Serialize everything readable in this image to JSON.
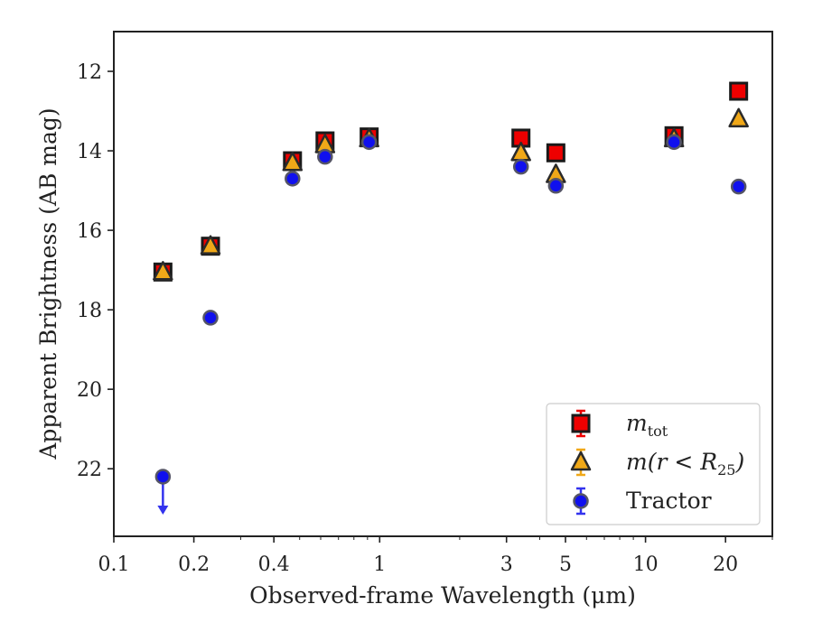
{
  "chart_data": {
    "type": "scatter",
    "xlabel": "Observed-frame Wavelength (μm)",
    "ylabel": "Apparent Brightness (AB mag)",
    "x_scale": "log",
    "xlim": [
      0.1,
      30
    ],
    "ylim": [
      23.7,
      11.0
    ],
    "y_inverted": true,
    "x_ticks": [
      {
        "value": 0.1,
        "label": "0.1"
      },
      {
        "value": 0.2,
        "label": "0.2"
      },
      {
        "value": 0.4,
        "label": "0.4"
      },
      {
        "value": 1,
        "label": "1"
      },
      {
        "value": 3,
        "label": "3"
      },
      {
        "value": 5,
        "label": "5"
      },
      {
        "value": 10,
        "label": "10"
      },
      {
        "value": 20,
        "label": "20"
      }
    ],
    "y_ticks": [
      {
        "value": 12,
        "label": "12"
      },
      {
        "value": 14,
        "label": "14"
      },
      {
        "value": 16,
        "label": "16"
      },
      {
        "value": 18,
        "label": "18"
      },
      {
        "value": 20,
        "label": "20"
      },
      {
        "value": 22,
        "label": "22"
      }
    ],
    "grid": false,
    "legend_position": "bottom-right",
    "series": [
      {
        "name": "m_tot",
        "legend_main": "m",
        "legend_sub": "tot",
        "marker": "square",
        "color": "#ee0000",
        "points": [
          {
            "x": 0.153,
            "y": 17.05
          },
          {
            "x": 0.231,
            "y": 16.4
          },
          {
            "x": 0.47,
            "y": 14.25
          },
          {
            "x": 0.623,
            "y": 13.75
          },
          {
            "x": 0.913,
            "y": 13.65
          },
          {
            "x": 3.4,
            "y": 13.68
          },
          {
            "x": 4.6,
            "y": 14.05
          },
          {
            "x": 12.8,
            "y": 13.62
          },
          {
            "x": 22.4,
            "y": 12.5
          }
        ]
      },
      {
        "name": "m(r < R25)",
        "legend_main": "m(r < R",
        "legend_sub": "25",
        "legend_close": ")",
        "marker": "triangle",
        "color": "#f0a818",
        "points": [
          {
            "x": 0.153,
            "y": 17.05
          },
          {
            "x": 0.231,
            "y": 16.4
          },
          {
            "x": 0.47,
            "y": 14.3
          },
          {
            "x": 0.623,
            "y": 13.85
          },
          {
            "x": 0.913,
            "y": 13.7
          },
          {
            "x": 3.4,
            "y": 14.05
          },
          {
            "x": 4.6,
            "y": 14.6
          },
          {
            "x": 12.8,
            "y": 13.7
          },
          {
            "x": 22.4,
            "y": 13.2
          }
        ]
      },
      {
        "name": "Tractor",
        "legend_main": "Tractor",
        "marker": "circle",
        "color": "#1010ee",
        "points": [
          {
            "x": 0.153,
            "y": 22.2,
            "upper_limit": true
          },
          {
            "x": 0.231,
            "y": 18.2
          },
          {
            "x": 0.47,
            "y": 14.7
          },
          {
            "x": 0.623,
            "y": 14.15
          },
          {
            "x": 0.913,
            "y": 13.78
          },
          {
            "x": 3.4,
            "y": 14.4
          },
          {
            "x": 4.6,
            "y": 14.88
          },
          {
            "x": 12.8,
            "y": 13.78
          },
          {
            "x": 22.4,
            "y": 14.9
          }
        ]
      }
    ]
  }
}
